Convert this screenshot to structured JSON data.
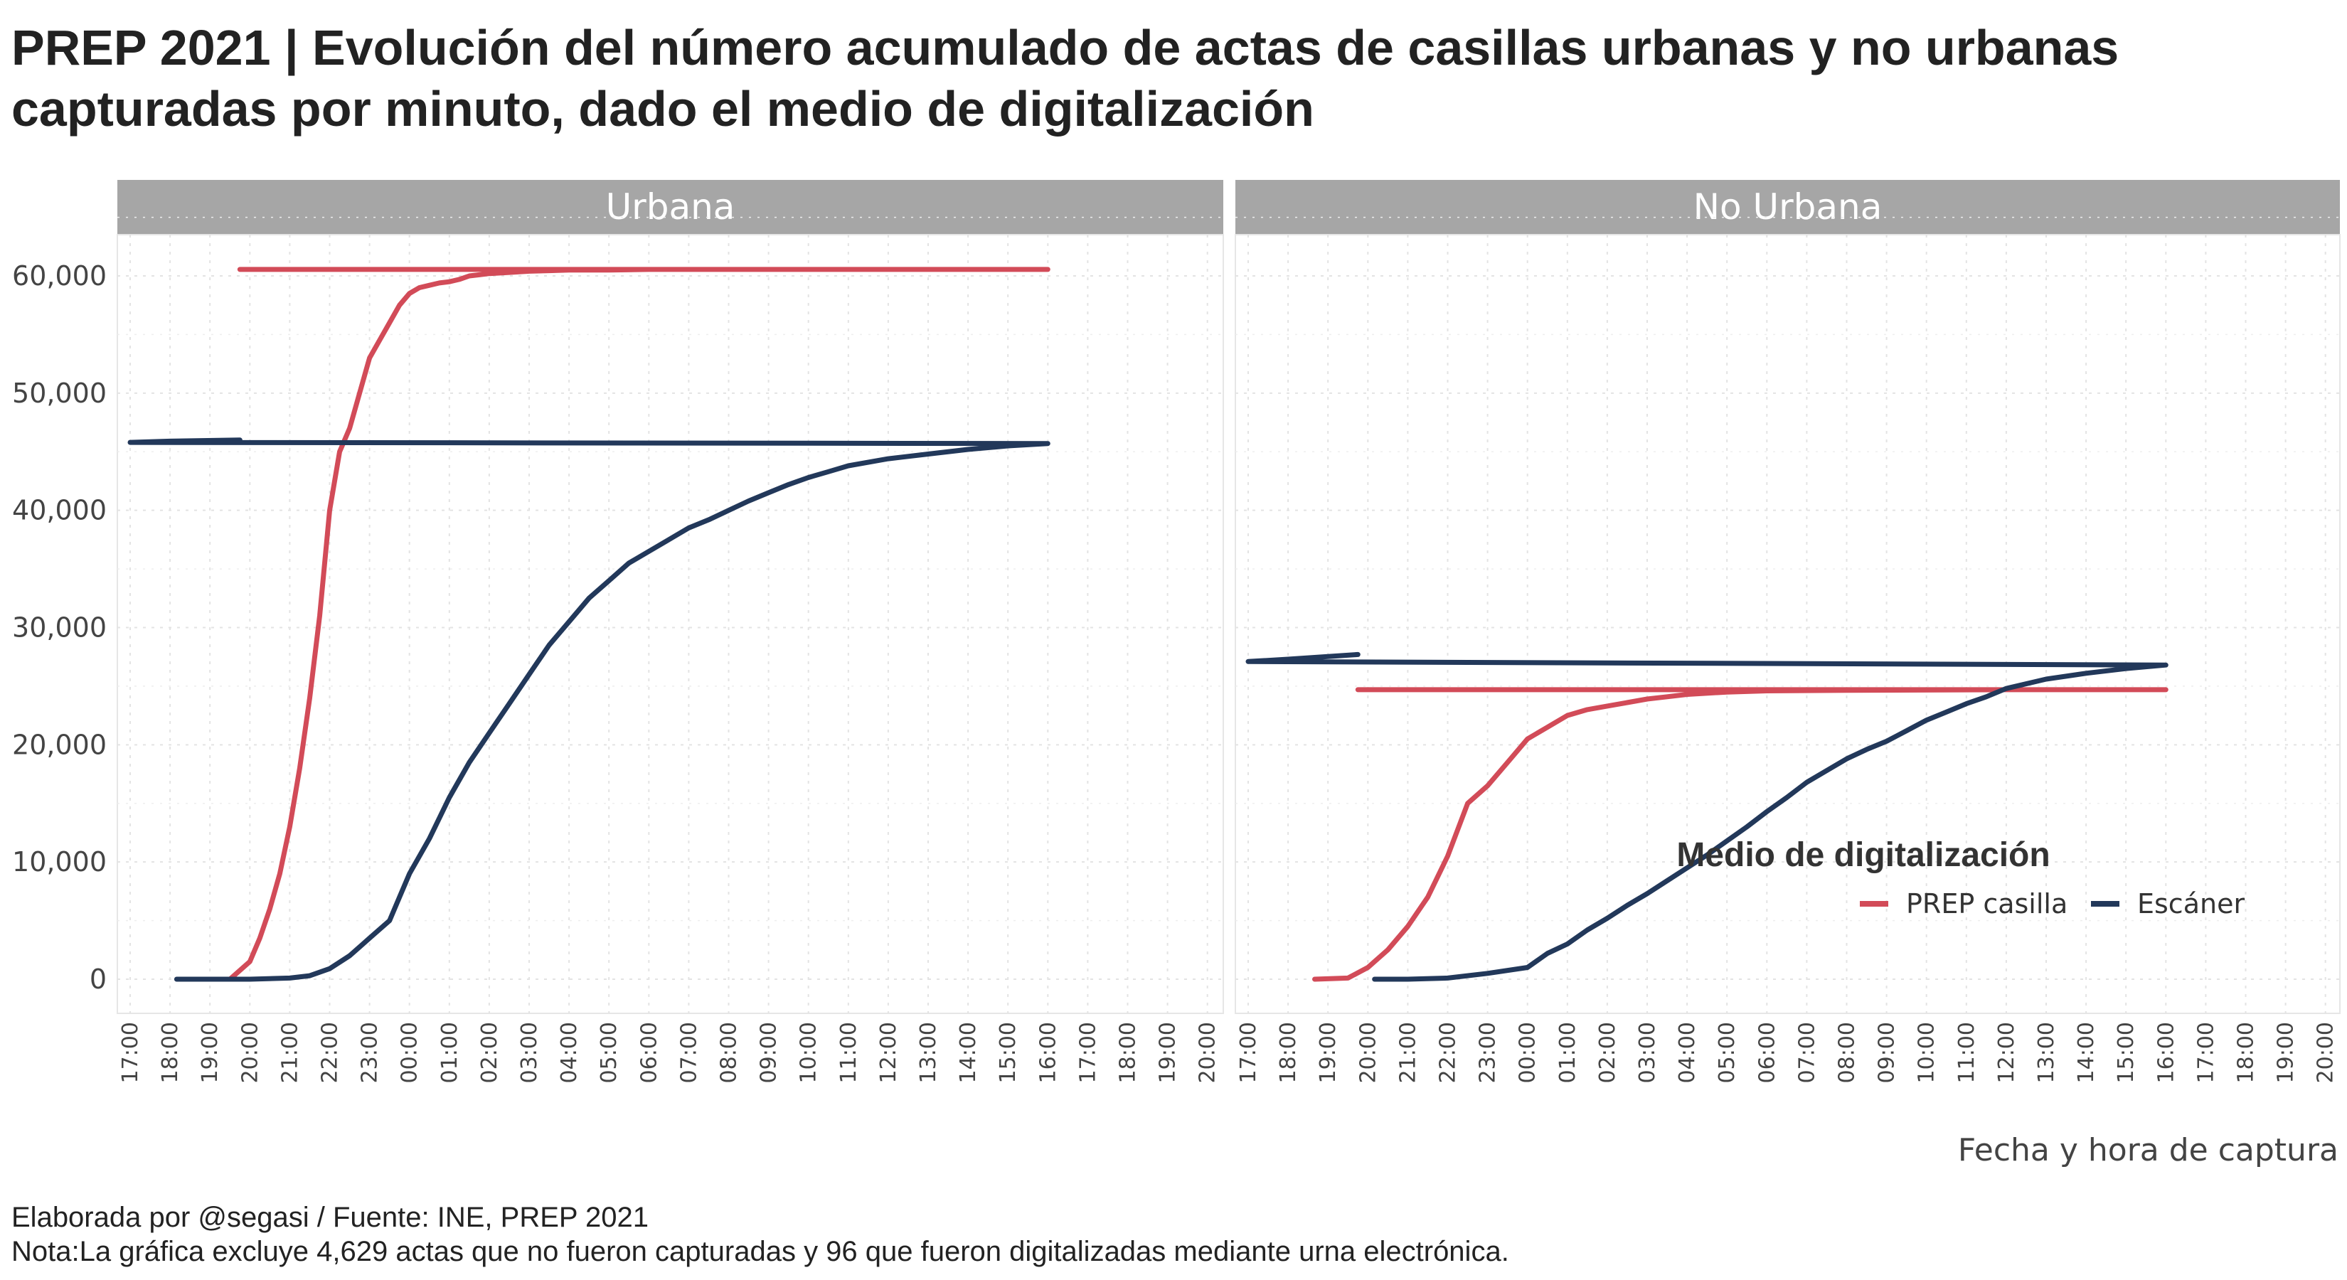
{
  "title": "PREP 2021 | Evolución del número acumulado de actas de casillas urbanas y no urbanas capturadas por minuto, dado el medio de digitalización",
  "caption_line1": "Elaborada por @segasi / Fuente: INE, PREP 2021",
  "caption_line2": "Nota:La gráfica excluye 4,629 actas que no fueron capturadas y 96 que fueron digitalizadas mediante urna electrónica.",
  "colors": {
    "prep_casilla": "#d24b58",
    "escaner": "#22385a",
    "strip": "#a6a6a6"
  },
  "chart_data": {
    "type": "line",
    "xlabel": "Fecha y hora de captura",
    "ylabel": "",
    "x_ticks": [
      "17:00",
      "18:00",
      "19:00",
      "20:00",
      "21:00",
      "22:00",
      "23:00",
      "00:00",
      "01:00",
      "02:00",
      "03:00",
      "04:00",
      "05:00",
      "06:00",
      "07:00",
      "08:00",
      "09:00",
      "10:00",
      "11:00",
      "12:00",
      "13:00",
      "14:00",
      "15:00",
      "16:00",
      "17:00",
      "18:00",
      "19:00",
      "20:00"
    ],
    "y_ticks": [
      "0",
      "10,000",
      "20,000",
      "30,000",
      "40,000",
      "50,000",
      "60,000"
    ],
    "y_tick_values": [
      0,
      10000,
      20000,
      30000,
      40000,
      50000,
      60000
    ],
    "ylim": [
      0,
      63000
    ],
    "grid": true,
    "legend_title": "Medio de digitalización",
    "legend_position": "inside right of No Urbana panel",
    "series_names": [
      "PREP casilla",
      "Escáner"
    ],
    "panels": [
      {
        "name": "Urbana",
        "series": [
          {
            "name": "PREP casilla",
            "x": [
              "19:30",
              "20:00",
              "20:15",
              "20:30",
              "20:45",
              "21:00",
              "21:15",
              "21:30",
              "21:45",
              "22:00",
              "22:15",
              "22:30",
              "22:45",
              "23:00",
              "23:15",
              "23:30",
              "23:45",
              "00:00",
              "00:15",
              "00:30",
              "00:45",
              "01:00",
              "01:15",
              "01:30",
              "01:45",
              "02:00",
              "02:30",
              "03:00",
              "03:30",
              "04:00",
              "05:00",
              "06:00",
              "08:00",
              "12:00",
              "16:00",
              "19:45"
            ],
            "y": [
              0,
              1500,
              3500,
              6000,
              9000,
              13000,
              18000,
              24000,
              31000,
              40000,
              45000,
              47000,
              50000,
              53000,
              54500,
              56000,
              57500,
              58500,
              59000,
              59200,
              59400,
              59500,
              59700,
              60000,
              60100,
              60200,
              60300,
              60400,
              60450,
              60500,
              60500,
              60550,
              60550,
              60550,
              60550,
              60550
            ]
          },
          {
            "name": "Escáner",
            "x": [
              "18:10",
              "19:00",
              "20:00",
              "21:00",
              "21:30",
              "22:00",
              "22:30",
              "23:00",
              "23:30",
              "23:45",
              "00:00",
              "00:30",
              "01:00",
              "01:30",
              "02:00",
              "02:30",
              "03:00",
              "03:30",
              "04:00",
              "04:30",
              "05:00",
              "05:30",
              "06:00",
              "06:30",
              "07:00",
              "07:30",
              "08:00",
              "08:30",
              "09:00",
              "09:30",
              "10:00",
              "10:30",
              "11:00",
              "12:00",
              "13:00",
              "14:00",
              "15:00",
              "16:00",
              "17:00",
              "18:00",
              "19:45"
            ],
            "y": [
              0,
              0,
              0,
              100,
              300,
              900,
              2000,
              3500,
              5000,
              7000,
              9000,
              12000,
              15500,
              18500,
              21000,
              23500,
              26000,
              28500,
              30500,
              32500,
              34000,
              35500,
              36500,
              37500,
              38500,
              39200,
              40000,
              40800,
              41500,
              42200,
              42800,
              43300,
              43800,
              44400,
              44800,
              45200,
              45500,
              45700,
              45800,
              45900,
              46000
            ]
          }
        ]
      },
      {
        "name": "No Urbana",
        "series": [
          {
            "name": "PREP casilla",
            "x": [
              "18:40",
              "19:30",
              "20:00",
              "20:30",
              "21:00",
              "21:30",
              "22:00",
              "22:30",
              "23:00",
              "23:30",
              "00:00",
              "00:30",
              "01:00",
              "01:30",
              "02:00",
              "02:30",
              "03:00",
              "03:30",
              "04:00",
              "05:00",
              "06:00",
              "08:00",
              "12:00",
              "16:00",
              "19:45"
            ],
            "y": [
              0,
              100,
              1000,
              2500,
              4500,
              7000,
              10500,
              15000,
              16500,
              18500,
              20500,
              21500,
              22500,
              23000,
              23300,
              23600,
              23900,
              24100,
              24300,
              24500,
              24600,
              24650,
              24700,
              24700,
              24700
            ]
          },
          {
            "name": "Escáner",
            "x": [
              "20:10",
              "21:00",
              "22:00",
              "23:00",
              "00:00",
              "00:30",
              "01:00",
              "01:30",
              "02:00",
              "02:30",
              "03:00",
              "03:30",
              "04:00",
              "04:30",
              "05:00",
              "05:30",
              "06:00",
              "06:30",
              "07:00",
              "07:30",
              "08:00",
              "08:30",
              "09:00",
              "09:30",
              "10:00",
              "10:30",
              "11:00",
              "11:30",
              "12:00",
              "13:00",
              "14:00",
              "15:00",
              "16:00",
              "17:00",
              "18:00",
              "19:45"
            ],
            "y": [
              0,
              0,
              100,
              500,
              1000,
              2200,
              3000,
              4200,
              5200,
              6300,
              7300,
              8400,
              9500,
              10600,
              11800,
              13000,
              14300,
              15500,
              16800,
              17800,
              18800,
              19600,
              20300,
              21200,
              22100,
              22800,
              23500,
              24100,
              24800,
              25600,
              26100,
              26500,
              26800,
              27100,
              27300,
              27700
            ]
          }
        ]
      }
    ]
  }
}
